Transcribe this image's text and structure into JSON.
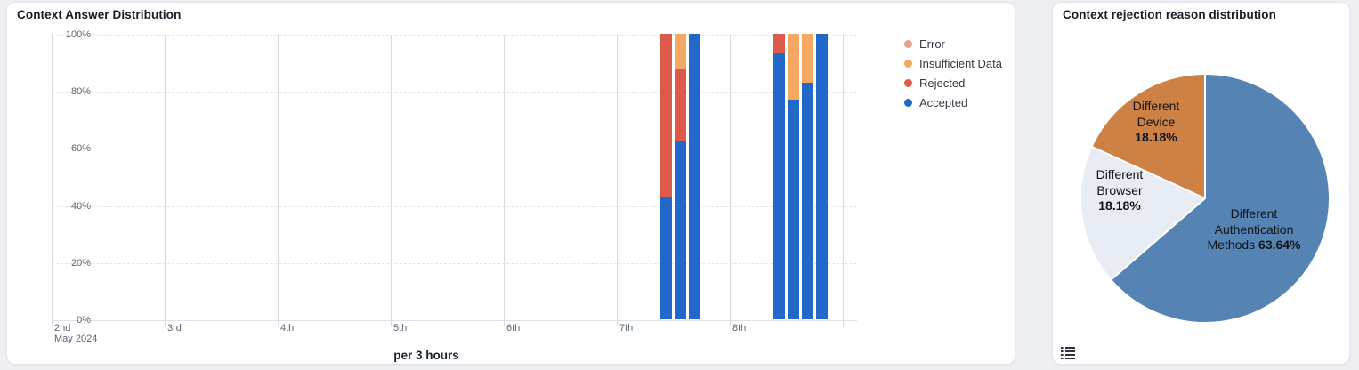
{
  "page": {
    "background": "#EDEFF2"
  },
  "left_panel": {
    "title": "Context Answer Distribution",
    "xaxis_title": "per 3 hours"
  },
  "right_panel": {
    "title": "Context rejection reason distribution",
    "legend_toggle_icon": "list-icon"
  },
  "chart_data": [
    {
      "type": "bar",
      "title": "Context Answer Distribution",
      "stacked": true,
      "unit": "percent",
      "xlabel": "per 3 hours",
      "ylim": [
        0,
        100
      ],
      "grid": true,
      "yticks": [
        {
          "value": 0,
          "label": "0%"
        },
        {
          "value": 20,
          "label": "20%"
        },
        {
          "value": 40,
          "label": "40%"
        },
        {
          "value": 60,
          "label": "60%"
        },
        {
          "value": 80,
          "label": "80%"
        },
        {
          "value": 100,
          "label": "100%"
        }
      ],
      "xticks": [
        {
          "label": "2nd",
          "sublabel": "May 2024"
        },
        {
          "label": "3rd"
        },
        {
          "label": "4th"
        },
        {
          "label": "5th"
        },
        {
          "label": "6th"
        },
        {
          "label": "7th"
        },
        {
          "label": "8th"
        },
        {
          "label": ""
        }
      ],
      "slots_per_day": 8,
      "legend_position": "right",
      "legend": [
        {
          "key": "error",
          "label": "Error",
          "color": "#EC9C8D"
        },
        {
          "key": "insufficient_data",
          "label": "Insufficient Data",
          "color": "#F6A862"
        },
        {
          "key": "rejected",
          "label": "Rejected",
          "color": "#DE5B4B"
        },
        {
          "key": "accepted",
          "label": "Accepted",
          "color": "#2268C8"
        }
      ],
      "stack_order_bottom_to_top": [
        "accepted",
        "rejected",
        "insufficient_data",
        "error"
      ],
      "bars": [
        {
          "date": "May 7",
          "time": "09:00",
          "day_index": 5,
          "slot": 3,
          "accepted": 43,
          "rejected": 57,
          "insufficient_data": 0,
          "error": 0
        },
        {
          "date": "May 7",
          "time": "12:00",
          "day_index": 5,
          "slot": 4,
          "accepted": 62.5,
          "rejected": 25,
          "insufficient_data": 12.5,
          "error": 0
        },
        {
          "date": "May 7",
          "time": "15:00",
          "day_index": 5,
          "slot": 5,
          "accepted": 100,
          "rejected": 0,
          "insufficient_data": 0,
          "error": 0
        },
        {
          "date": "May 8",
          "time": "09:00",
          "day_index": 6,
          "slot": 3,
          "accepted": 93,
          "rejected": 7,
          "insufficient_data": 0,
          "error": 0
        },
        {
          "date": "May 8",
          "time": "12:00",
          "day_index": 6,
          "slot": 4,
          "accepted": 77,
          "rejected": 0,
          "insufficient_data": 23,
          "error": 0
        },
        {
          "date": "May 8",
          "time": "15:00",
          "day_index": 6,
          "slot": 5,
          "accepted": 83,
          "rejected": 0,
          "insufficient_data": 17,
          "error": 0
        },
        {
          "date": "May 8",
          "time": "18:00",
          "day_index": 6,
          "slot": 6,
          "accepted": 100,
          "rejected": 0,
          "insufficient_data": 0,
          "error": 0
        }
      ]
    },
    {
      "type": "pie",
      "title": "Context rejection reason distribution",
      "start_angle_deg": 0,
      "clockwise": true,
      "slices": [
        {
          "label": "Different Authentication Methods",
          "pct": 63.64,
          "color": "#5584B4",
          "label_lines": [
            "Different",
            "Authentication",
            "Methods"
          ],
          "pct_text": "63.64%"
        },
        {
          "label": "Different Browser",
          "pct": 18.18,
          "color": "#E8ECF4",
          "label_lines": [
            "Different",
            "Browser"
          ],
          "pct_text": "18.18%"
        },
        {
          "label": "Different Device",
          "pct": 18.18,
          "color": "#CD8144",
          "label_lines": [
            "Different",
            "Device"
          ],
          "pct_text": "18.18%"
        }
      ]
    }
  ]
}
